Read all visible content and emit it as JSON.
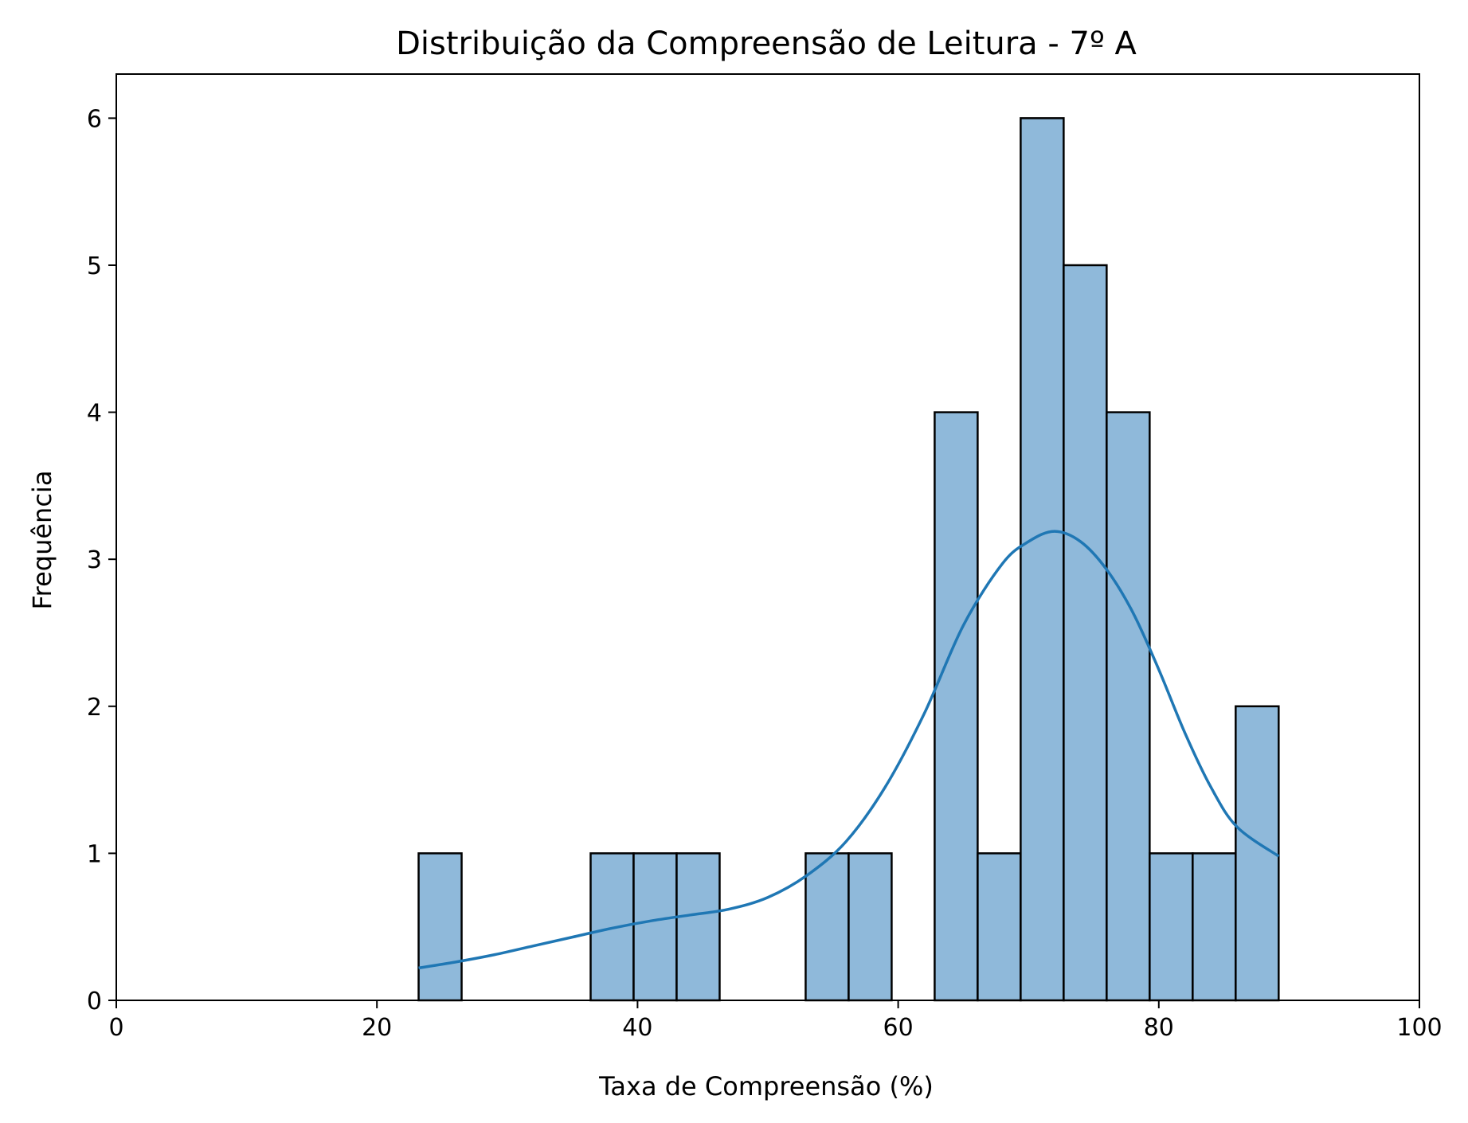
{
  "chart_data": {
    "type": "bar",
    "title": "Distribuição da Compreensão de Leitura - 7º A",
    "xlabel": "Taxa de Compreensão (%)",
    "ylabel": "Frequência",
    "xlim": [
      0,
      100
    ],
    "ylim": [
      0,
      6.3
    ],
    "x_ticks": [
      "0",
      "20",
      "40",
      "60",
      "80",
      "100"
    ],
    "y_ticks": [
      "0",
      "1",
      "2",
      "3",
      "4",
      "5",
      "6"
    ],
    "bin_edges": [
      23.2,
      26.5,
      29.8,
      33.1,
      36.4,
      39.7,
      43.0,
      46.3,
      49.6,
      52.9,
      56.2,
      59.5,
      62.8,
      66.1,
      69.4,
      72.7,
      76.0,
      79.3,
      82.6,
      85.9,
      89.2
    ],
    "values": [
      1,
      0,
      0,
      0,
      1,
      1,
      1,
      0,
      0,
      1,
      1,
      0,
      4,
      1,
      6,
      5,
      4,
      1,
      1,
      2
    ],
    "kde": {
      "x": [
        23.2,
        26,
        29,
        32,
        35,
        38,
        41,
        44,
        47,
        50,
        53,
        56,
        59,
        62,
        65,
        68,
        70,
        72,
        74,
        76,
        78,
        80,
        82,
        84,
        86,
        89.2
      ],
      "y": [
        0.22,
        0.26,
        0.31,
        0.37,
        0.43,
        0.49,
        0.54,
        0.58,
        0.62,
        0.7,
        0.85,
        1.08,
        1.45,
        1.95,
        2.55,
        2.97,
        3.12,
        3.19,
        3.12,
        2.93,
        2.64,
        2.25,
        1.82,
        1.45,
        1.18,
        0.98
      ]
    },
    "colors": {
      "bar_fill": "#8fb9da",
      "bar_edge": "#000000",
      "kde_line": "#1f77b4"
    },
    "grid": false,
    "legend": "none"
  }
}
